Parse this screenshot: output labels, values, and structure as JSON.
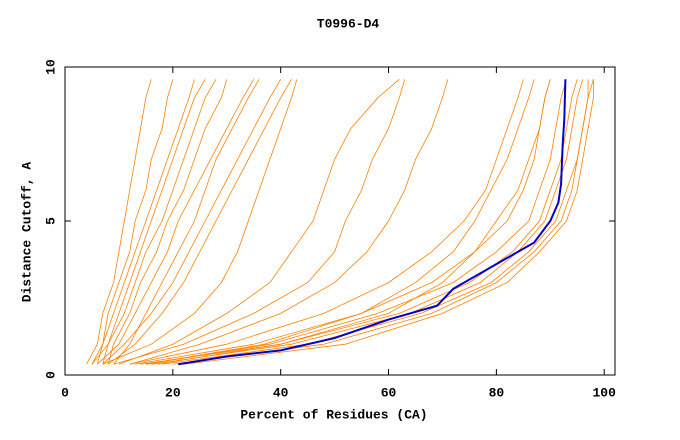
{
  "chart_data": {
    "type": "line",
    "title": "T0996-D4",
    "x_label": "Percent of Residues (CA)",
    "y_label": "Distance Cutoff, A",
    "xlim": [
      0,
      102
    ],
    "ylim": [
      0,
      10
    ],
    "xticks": [
      0,
      20,
      40,
      60,
      80,
      100
    ],
    "yticks": [
      0,
      5,
      10
    ],
    "series": [
      {
        "color": "#ff8000",
        "x": [
          4,
          6,
          7,
          9,
          10,
          11,
          12,
          13,
          14,
          15,
          16
        ],
        "values": [
          0.35,
          1,
          2,
          3,
          4,
          5,
          6,
          7,
          8,
          9,
          9.6
        ]
      },
      {
        "color": "#ff8000",
        "x": [
          5,
          7,
          8,
          10,
          12,
          13,
          15,
          16,
          18,
          19,
          20
        ],
        "values": [
          0.35,
          1,
          2,
          3,
          4,
          5,
          6,
          7,
          8,
          9,
          9.6
        ]
      },
      {
        "color": "#ff8000",
        "x": [
          6,
          7,
          9,
          11,
          13,
          15,
          17,
          19,
          21,
          23,
          24
        ],
        "values": [
          0.35,
          1,
          2,
          3,
          4,
          5,
          6,
          7,
          8,
          9,
          9.6
        ]
      },
      {
        "color": "#ff8000",
        "x": [
          7,
          8,
          10,
          12,
          14,
          16,
          18,
          20,
          22,
          24,
          26
        ],
        "values": [
          0.35,
          1,
          2,
          3,
          4,
          5,
          6,
          7,
          8,
          9,
          9.6
        ]
      },
      {
        "color": "#ff8000",
        "x": [
          5,
          8,
          11,
          13,
          15,
          18,
          20,
          22,
          24,
          26,
          28
        ],
        "values": [
          0.35,
          1,
          2,
          3,
          4,
          5,
          6,
          7,
          8,
          9,
          9.6
        ]
      },
      {
        "color": "#ff8000",
        "x": [
          8,
          9,
          12,
          14,
          17,
          19,
          22,
          24,
          26,
          29,
          30
        ],
        "values": [
          0.35,
          1,
          2,
          3,
          4,
          5,
          6,
          7,
          8,
          9,
          9.6
        ]
      },
      {
        "color": "#ff8000",
        "x": [
          6,
          10,
          13,
          16,
          19,
          21,
          24,
          27,
          30,
          33,
          35
        ],
        "values": [
          0.35,
          1,
          2,
          3,
          4,
          5,
          6,
          7,
          8,
          9,
          9.6
        ]
      },
      {
        "color": "#ff8000",
        "x": [
          9,
          12,
          15,
          18,
          21,
          24,
          26,
          28,
          31,
          34,
          36
        ],
        "values": [
          0.35,
          1,
          2,
          3,
          4,
          5,
          6,
          7,
          8,
          9,
          9.6
        ]
      },
      {
        "color": "#ff8000",
        "x": [
          7,
          11,
          16,
          20,
          23,
          26,
          29,
          32,
          35,
          38,
          40
        ],
        "values": [
          0.35,
          1,
          2,
          3,
          4,
          5,
          6,
          7,
          8,
          9,
          9.6
        ]
      },
      {
        "color": "#ff8000",
        "x": [
          8,
          13,
          18,
          22,
          25,
          28,
          31,
          34,
          37,
          40,
          42
        ],
        "values": [
          0.35,
          1,
          2,
          3,
          4,
          5,
          6,
          7,
          8,
          9,
          9.6
        ]
      },
      {
        "color": "#ff8000",
        "x": [
          7,
          16,
          24,
          29,
          32,
          34,
          36,
          38,
          40,
          42,
          43
        ],
        "values": [
          0.35,
          1,
          2,
          3,
          4,
          5,
          6,
          7,
          8,
          9,
          9.6
        ]
      },
      {
        "color": "#ff8000",
        "x": [
          10,
          20,
          30,
          38,
          42,
          46,
          48,
          50,
          53,
          58,
          62
        ],
        "values": [
          0.35,
          1,
          2,
          3,
          4,
          5,
          6,
          7,
          8,
          9,
          9.6
        ]
      },
      {
        "color": "#ff8000",
        "x": [
          9,
          22,
          35,
          45,
          50,
          52,
          55,
          57,
          60,
          62,
          63
        ],
        "values": [
          0.35,
          1,
          2,
          3,
          4,
          5,
          6,
          7,
          8,
          9,
          9.6
        ]
      },
      {
        "color": "#ff8000",
        "x": [
          12,
          25,
          40,
          50,
          56,
          60,
          63,
          65,
          68,
          70,
          71
        ],
        "values": [
          0.35,
          1,
          2,
          3,
          4,
          5,
          6,
          7,
          8,
          9,
          9.6
        ]
      },
      {
        "color": "#ff8000",
        "x": [
          13,
          35,
          55,
          68,
          76,
          82,
          85,
          87,
          88,
          89,
          90
        ],
        "values": [
          0.35,
          1,
          2,
          3,
          4,
          5,
          6,
          7,
          8,
          9,
          9.6
        ]
      },
      {
        "color": "#ff8000",
        "x": [
          15,
          38,
          58,
          72,
          80,
          86,
          88,
          90,
          91,
          92,
          93
        ],
        "values": [
          0.35,
          1,
          2,
          3,
          4,
          5,
          6,
          7,
          8,
          9,
          9.6
        ]
      },
      {
        "color": "#ff8000",
        "x": [
          14,
          40,
          62,
          75,
          83,
          88,
          90,
          92,
          93,
          94,
          95
        ],
        "values": [
          0.35,
          1,
          2,
          3,
          4,
          5,
          6,
          7,
          8,
          9,
          9.6
        ]
      },
      {
        "color": "#ff8000",
        "x": [
          16,
          42,
          64,
          77,
          84,
          89,
          91,
          93,
          94,
          95,
          96
        ],
        "values": [
          0.35,
          1,
          2,
          3,
          4,
          5,
          6,
          7,
          8,
          9,
          9.6
        ]
      },
      {
        "color": "#ff8000",
        "x": [
          18,
          45,
          66,
          79,
          86,
          91,
          93,
          95,
          96,
          97,
          98
        ],
        "values": [
          0.35,
          1,
          2,
          3,
          4,
          5,
          6,
          7,
          8,
          9,
          9.6
        ]
      },
      {
        "color": "#ff8000",
        "x": [
          20,
          48,
          68,
          80,
          87,
          92,
          94,
          95,
          96,
          97,
          97
        ],
        "values": [
          0.35,
          1,
          2,
          3,
          4,
          5,
          6,
          7,
          8,
          9,
          9.6
        ]
      },
      {
        "color": "#ff8000",
        "x": [
          17,
          40,
          60,
          70,
          76,
          80,
          84,
          86,
          88,
          89,
          90
        ],
        "values": [
          0.35,
          1,
          2,
          3,
          4,
          5,
          6,
          7,
          8,
          9,
          9.6
        ]
      },
      {
        "color": "#ff8000",
        "x": [
          15,
          37,
          55,
          65,
          72,
          76,
          79,
          82,
          84,
          86,
          87
        ],
        "values": [
          0.35,
          1,
          2,
          3,
          4,
          5,
          6,
          7,
          8,
          9,
          9.6
        ]
      },
      {
        "color": "#ff8000",
        "x": [
          12,
          30,
          48,
          60,
          68,
          74,
          78,
          80,
          82,
          84,
          85
        ],
        "values": [
          0.35,
          1,
          2,
          3,
          4,
          5,
          6,
          7,
          8,
          9,
          9.6
        ]
      },
      {
        "color": "#ff8000",
        "x": [
          22,
          52,
          70,
          82,
          88,
          93,
          95,
          96,
          97,
          98,
          98
        ],
        "values": [
          0.35,
          1,
          2,
          3,
          4,
          5,
          6,
          7,
          8,
          9,
          9.6
        ]
      },
      {
        "color": "#0000cc",
        "x": [
          21,
          30,
          40,
          50,
          60,
          69,
          72,
          80,
          87,
          90,
          91.5,
          92,
          92.3,
          92.6,
          92.8
        ],
        "values": [
          0.35,
          0.6,
          0.8,
          1.2,
          1.8,
          2.25,
          2.8,
          3.6,
          4.3,
          5,
          5.6,
          6.2,
          7.5,
          8.3,
          9.6
        ],
        "width": 2
      }
    ]
  }
}
